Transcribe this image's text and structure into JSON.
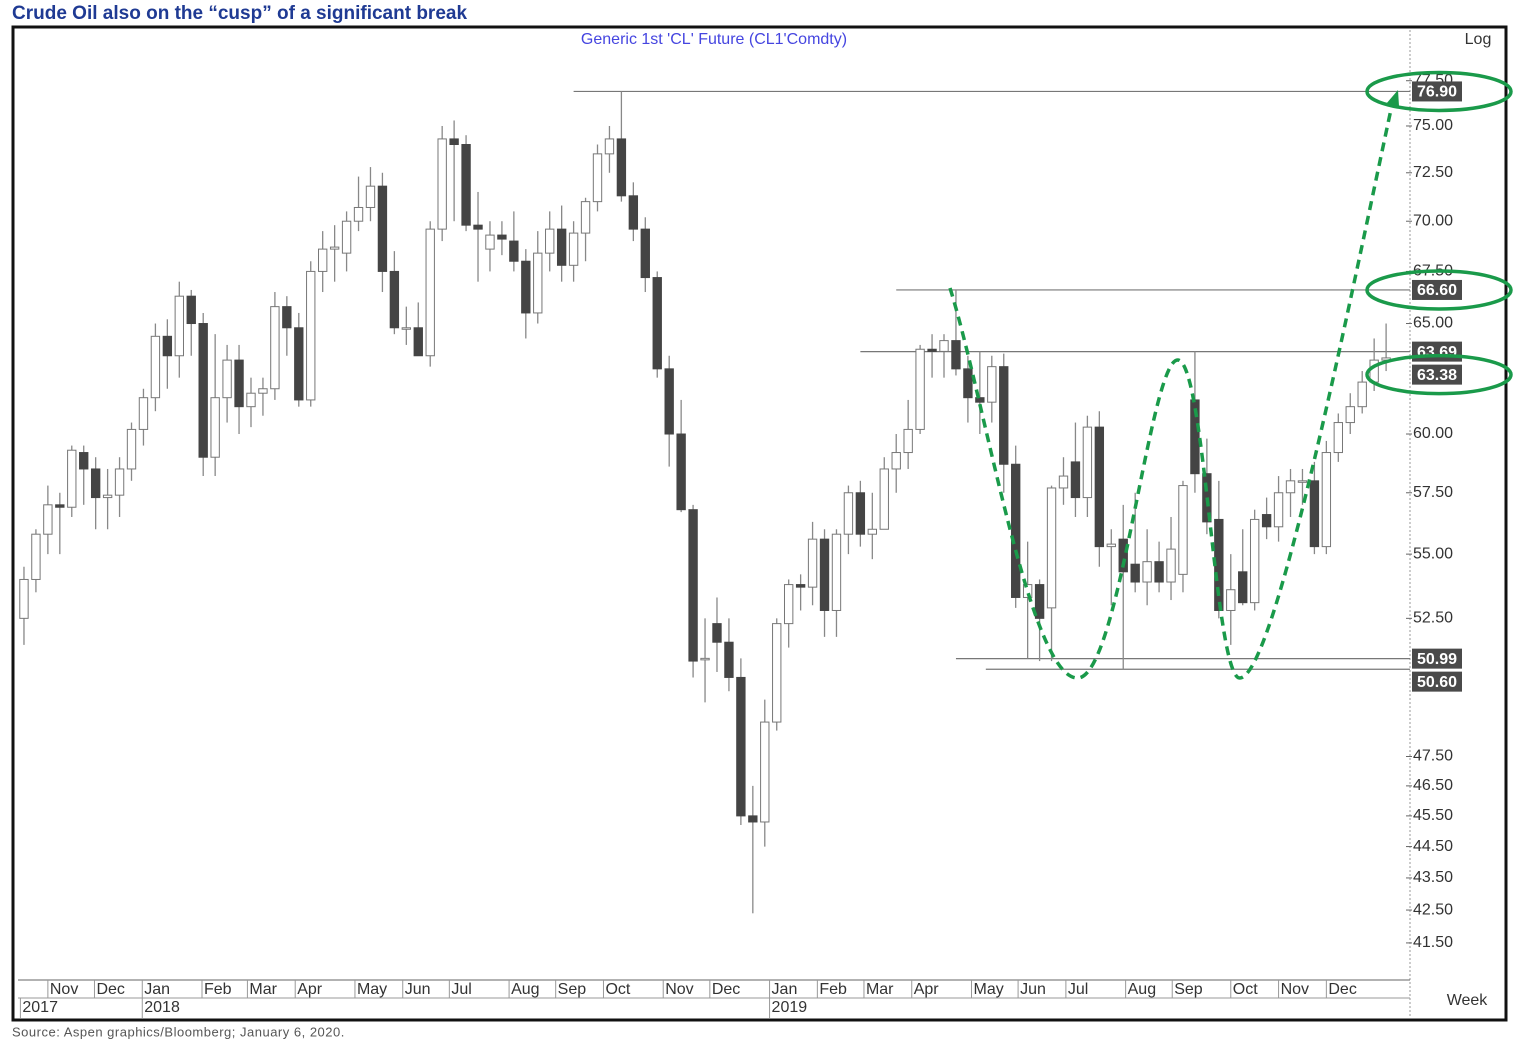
{
  "chart_data": {
    "type": "candlestick",
    "title": "Crude Oil also on the “cusp” of a significant break",
    "subtitle": "Generic  1st  'CL'  Future  (CL1'Comdty)",
    "scale_label": "Log",
    "period_label": "Week",
    "source": "Source: Aspen graphics/Bloomberg; January 6, 2020.",
    "log_scale": true,
    "up_color": "#ffffff",
    "down_color": "#444444",
    "wick_color": "#888888",
    "annotation_color": "#1a9a4a",
    "candles": {
      "open": [
        52.5,
        54,
        55.8,
        57,
        56.9,
        59.2,
        58.5,
        57.3,
        57.4,
        58.5,
        60.2,
        61.6,
        64.4,
        63.5,
        66.3,
        65,
        59,
        61.6,
        63.3,
        61.2,
        61.8,
        62,
        65.8,
        64.8,
        61.5,
        67.5,
        68.6,
        68.4,
        70,
        70.7,
        71.8,
        67.5,
        64.8,
        64.8,
        63.5,
        69.6,
        74.3,
        74,
        69.8,
        68.6,
        69.3,
        69,
        68,
        65.5,
        68.4,
        69.6,
        67.8,
        69.4,
        71,
        73.5,
        74.3,
        71.3,
        69.6,
        67.2,
        62.9,
        60,
        56.8,
        51,
        52.3,
        51.6,
        50.3,
        45.5,
        45.3,
        48.7,
        52.3,
        53.8,
        53.7,
        55.6,
        52.8,
        55.8,
        57.5,
        55.8,
        56,
        58.5,
        59.2,
        60.2,
        63.8,
        63.7,
        64.2,
        62.9,
        61.6,
        61.4,
        63,
        58.7,
        53.3,
        53.8,
        52.9,
        57.7,
        58.8,
        57.3,
        60.3,
        55.3,
        55.6,
        54.6,
        53.9,
        54.7,
        53.9,
        54.2,
        61.5,
        58.3,
        56.4,
        52.8,
        54.3,
        53.1,
        56.6,
        56.1,
        57.5,
        58,
        58,
        55.3,
        59.2,
        60.5,
        61.2,
        62.3,
        63.3
      ],
      "high": [
        54.5,
        56,
        57.8,
        57.5,
        59.5,
        59.5,
        59,
        58.5,
        59,
        60.5,
        62,
        65,
        65.2,
        67,
        66.6,
        65.5,
        64.5,
        64,
        64,
        62.5,
        62.5,
        66.5,
        66.3,
        65.5,
        68,
        69.5,
        69.8,
        70.5,
        72.3,
        72.8,
        72.5,
        68.5,
        65.8,
        66,
        70,
        75,
        75.3,
        74.5,
        71.5,
        70,
        70,
        70.5,
        68.6,
        69.5,
        70.5,
        70.8,
        70,
        71.2,
        74,
        75,
        76.9,
        72,
        70.2,
        67.5,
        63.5,
        61.5,
        57,
        52.5,
        53.3,
        52.5,
        51,
        46.5,
        49.5,
        52.5,
        54,
        54.2,
        56.3,
        56,
        56,
        57.8,
        58,
        57.5,
        59,
        60,
        61.5,
        64,
        64.5,
        64.5,
        66.6,
        63.5,
        63.7,
        63.5,
        63.6,
        59.5,
        55.5,
        54,
        57.8,
        59,
        60.5,
        60.8,
        61,
        56,
        57,
        57.5,
        56,
        55.5,
        56.5,
        58,
        63.7,
        59.8,
        58,
        55,
        56,
        56.8,
        57.3,
        58.2,
        58.5,
        58.5,
        58.8,
        59.7,
        60.9,
        61.8,
        62.8,
        64.3,
        65
      ],
      "low": [
        51.5,
        53.5,
        55,
        55,
        56.5,
        57,
        56,
        56,
        56.5,
        58,
        59.5,
        61,
        62,
        62.5,
        63.5,
        58.2,
        58.2,
        60.5,
        60,
        60.3,
        60.8,
        61.5,
        63.5,
        61.2,
        61.2,
        66.5,
        67,
        67.5,
        69.5,
        70,
        66.5,
        64.5,
        64,
        63.5,
        63,
        69,
        70,
        69.5,
        67,
        67.5,
        68.3,
        67.5,
        64.3,
        65,
        67.5,
        67,
        67,
        68,
        70.5,
        72.5,
        71,
        69,
        66.5,
        62.5,
        58.6,
        56.7,
        50.3,
        49.4,
        50.5,
        49.8,
        45.2,
        42.4,
        44.5,
        48.4,
        51.4,
        52.8,
        53,
        51.8,
        51.8,
        55,
        55.3,
        54.8,
        56,
        57.5,
        58.5,
        60,
        62.5,
        62.5,
        62.6,
        60.5,
        60,
        60.5,
        57.5,
        52.9,
        51,
        50.9,
        50.9,
        57,
        56.5,
        56.5,
        54.5,
        53,
        50.6,
        53.5,
        53,
        53.5,
        53.2,
        53.5,
        57.5,
        55.8,
        52.5,
        51.5,
        53,
        52.8,
        55.6,
        55.5,
        56.5,
        57,
        55,
        55,
        58.8,
        60,
        60.9,
        61.9,
        62.8
      ],
      "close": [
        54,
        55.8,
        57,
        56.9,
        59.3,
        58.5,
        57.3,
        57.4,
        58.5,
        60.2,
        61.6,
        64.4,
        63.5,
        66.3,
        65,
        59,
        61.6,
        63.3,
        61.2,
        61.8,
        62,
        65.8,
        64.8,
        61.5,
        67.5,
        68.6,
        68.7,
        70,
        70.7,
        71.8,
        67.5,
        64.8,
        64.8,
        63.5,
        69.6,
        74.3,
        74,
        69.8,
        69.6,
        69.3,
        69.1,
        68,
        65.5,
        68.4,
        69.6,
        67.8,
        69.4,
        71,
        73.5,
        74.3,
        71.3,
        69.6,
        67.2,
        62.9,
        60,
        56.8,
        50.9,
        51,
        51.6,
        50.3,
        45.5,
        45.3,
        48.7,
        52.3,
        53.8,
        53.7,
        55.6,
        52.8,
        55.8,
        57.5,
        55.8,
        56,
        58.5,
        59.2,
        60.2,
        63.8,
        63.7,
        64.2,
        62.9,
        61.6,
        61.4,
        63,
        58.7,
        53.3,
        53.8,
        52.5,
        57.7,
        58.2,
        57.3,
        60.3,
        55.3,
        55.4,
        54.3,
        53.9,
        54.7,
        53.9,
        55.2,
        57.8,
        58.3,
        56.3,
        52.8,
        53.6,
        53.1,
        56.4,
        56.1,
        57.5,
        58,
        58,
        55.3,
        59.2,
        60.5,
        61.2,
        62.3,
        63.3,
        63.4
      ]
    },
    "xlim": [
      -0.5,
      116
    ],
    "ylim": [
      40.4,
      80.4
    ],
    "xticks": [
      {
        "value": 2.0,
        "label": "Nov"
      },
      {
        "value": 5.9,
        "label": "Dec"
      },
      {
        "value": 9.9,
        "label": "Jan"
      },
      {
        "value": 14.9,
        "label": "Feb"
      },
      {
        "value": 18.7,
        "label": "Mar"
      },
      {
        "value": 22.7,
        "label": "Apr"
      },
      {
        "value": 27.7,
        "label": "May"
      },
      {
        "value": 31.7,
        "label": "Jun"
      },
      {
        "value": 35.6,
        "label": "Jul"
      },
      {
        "value": 40.6,
        "label": "Aug"
      },
      {
        "value": 44.5,
        "label": "Sep"
      },
      {
        "value": 48.5,
        "label": "Oct"
      },
      {
        "value": 53.5,
        "label": "Nov"
      },
      {
        "value": 57.4,
        "label": "Dec"
      },
      {
        "value": 62.4,
        "label": "Jan"
      },
      {
        "value": 66.4,
        "label": "Feb"
      },
      {
        "value": 70.3,
        "label": "Mar"
      },
      {
        "value": 74.3,
        "label": "Apr"
      },
      {
        "value": 79.3,
        "label": "May"
      },
      {
        "value": 83.2,
        "label": "Jun"
      },
      {
        "value": 87.2,
        "label": "Jul"
      },
      {
        "value": 92.2,
        "label": "Aug"
      },
      {
        "value": 96.1,
        "label": "Sep"
      },
      {
        "value": 101.0,
        "label": "Oct"
      },
      {
        "value": 105.0,
        "label": "Nov"
      },
      {
        "value": 109.0,
        "label": "Dec"
      }
    ],
    "years": [
      {
        "value": -0.3,
        "label": "2017"
      },
      {
        "value": 9.9,
        "label": "2018"
      },
      {
        "value": 62.4,
        "label": "2019"
      }
    ],
    "yticks": [
      {
        "value": 77.5,
        "label": "77.50"
      },
      {
        "value": 75,
        "label": "75.00"
      },
      {
        "value": 72.5,
        "label": "72.50"
      },
      {
        "value": 70,
        "label": "70.00"
      },
      {
        "value": 67.5,
        "label": "67.50"
      },
      {
        "value": 65,
        "label": "65.00"
      },
      {
        "value": 60,
        "label": "60.00"
      },
      {
        "value": 57.5,
        "label": "57.50"
      },
      {
        "value": 55,
        "label": "55.00"
      },
      {
        "value": 52.5,
        "label": "52.50"
      },
      {
        "value": 47.5,
        "label": "47.50"
      },
      {
        "value": 46.5,
        "label": "46.50"
      },
      {
        "value": 45.5,
        "label": "45.50"
      },
      {
        "value": 44.5,
        "label": "44.50"
      },
      {
        "value": 43.5,
        "label": "43.50"
      },
      {
        "value": 42.5,
        "label": "42.50"
      },
      {
        "value": 41.5,
        "label": "41.50"
      }
    ],
    "levels": [
      {
        "value": 76.9,
        "label": "76.90",
        "start": 46,
        "circled": true
      },
      {
        "value": 66.6,
        "label": "66.60",
        "start": 73,
        "circled": true
      },
      {
        "value": 63.69,
        "label": "63.69",
        "start": 70,
        "circled": false
      },
      {
        "value": 63.38,
        "label": "63.38",
        "circled": true
      },
      {
        "value": 50.99,
        "label": "50.99",
        "start": 78,
        "circled": false
      },
      {
        "value": 50.6,
        "label": "50.60",
        "start": 80.5,
        "circled": false
      }
    ]
  }
}
